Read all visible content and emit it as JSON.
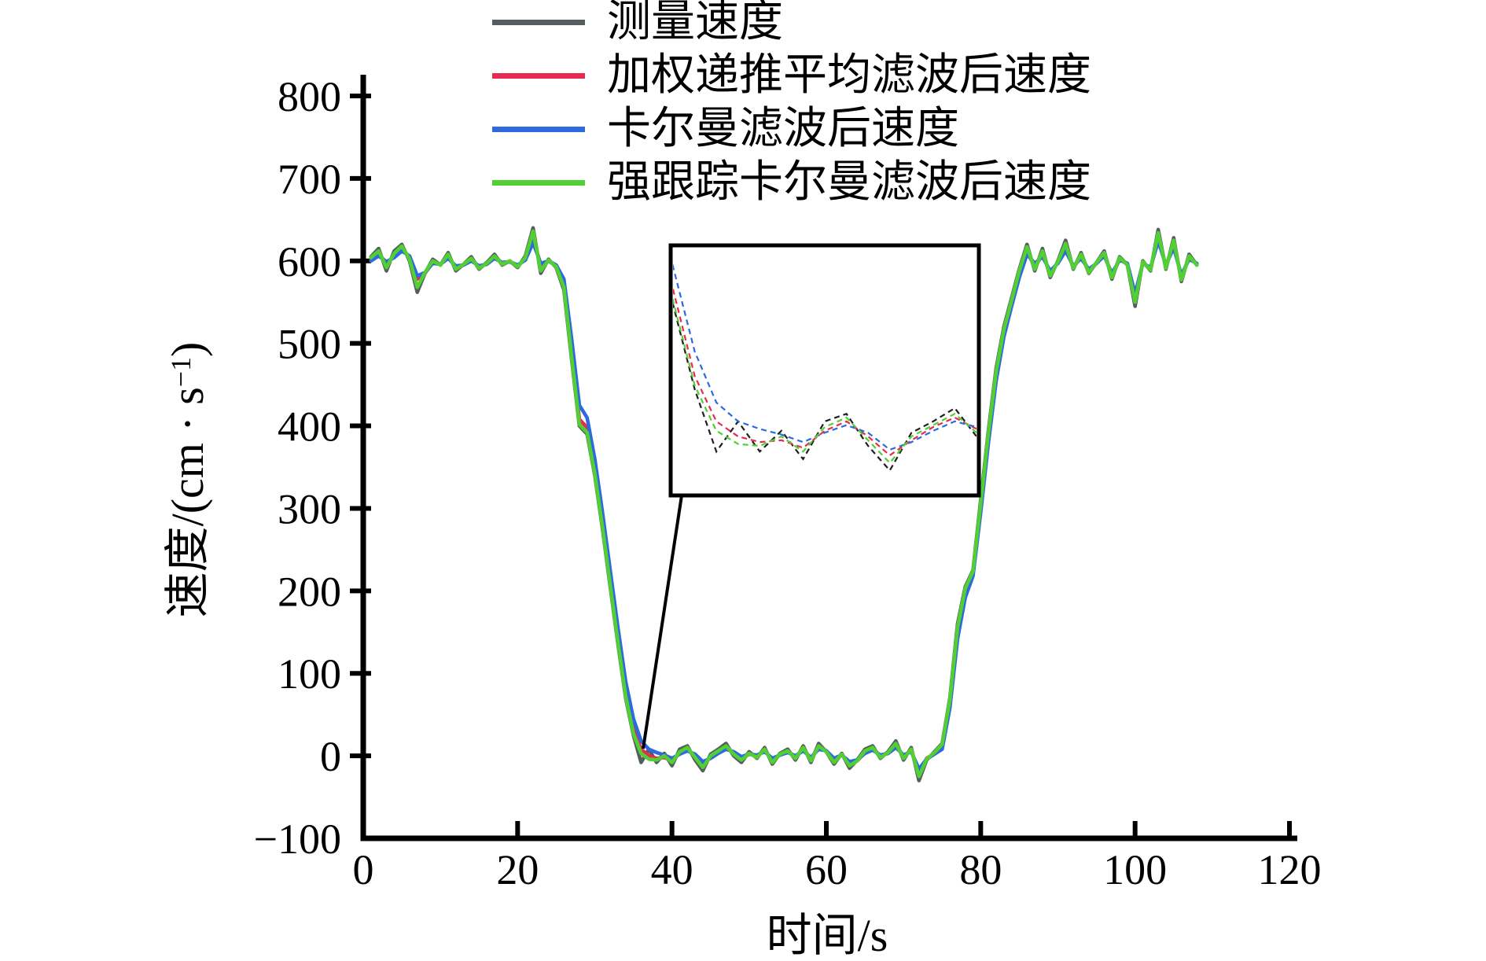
{
  "axes": {
    "xlabel": "时间/s",
    "ylabel_prefix": "速度/(cm · s",
    "ylabel_sup": "−1",
    "ylabel_suffix": ")"
  },
  "chart_data": {
    "type": "line",
    "title": "",
    "xlabel": "时间/s",
    "ylabel": "速度/(cm·s⁻¹)",
    "xlim": [
      0,
      120
    ],
    "ylim": [
      -100,
      800
    ],
    "x_ticks": [
      0,
      20,
      40,
      60,
      80,
      100,
      120
    ],
    "y_ticks": [
      -100,
      0,
      100,
      200,
      300,
      400,
      500,
      600,
      700,
      800
    ],
    "grid": false,
    "legend_position": "top-center",
    "t_start": 1,
    "t_step": 1,
    "series": [
      {
        "name": "测量速度",
        "color": "#555d60",
        "values": [
          605,
          615,
          588,
          612,
          620,
          600,
          562,
          585,
          602,
          595,
          610,
          588,
          596,
          605,
          590,
          598,
          608,
          595,
          600,
          592,
          606,
          640,
          585,
          602,
          592,
          565,
          480,
          400,
          390,
          340,
          275,
          205,
          135,
          70,
          25,
          -8,
          8,
          -8,
          3,
          -12,
          8,
          12,
          -5,
          -18,
          2,
          8,
          15,
          0,
          -8,
          5,
          -3,
          10,
          -10,
          3,
          8,
          -5,
          12,
          -8,
          15,
          5,
          -10,
          3,
          -15,
          -5,
          8,
          12,
          -3,
          5,
          18,
          -5,
          10,
          -30,
          -5,
          5,
          15,
          70,
          160,
          205,
          225,
          310,
          395,
          470,
          520,
          555,
          590,
          620,
          588,
          615,
          580,
          600,
          625,
          590,
          610,
          585,
          598,
          612,
          578,
          605,
          595,
          545,
          600,
          588,
          638,
          590,
          628,
          575,
          608,
          595
        ]
      },
      {
        "name": "加权递推平均滤波后速度",
        "color": "#e82a50",
        "values": [
          602,
          608,
          598,
          605,
          614,
          605,
          578,
          585,
          598,
          596,
          605,
          592,
          595,
          601,
          593,
          596,
          604,
          598,
          599,
          594,
          602,
          628,
          595,
          600,
          594,
          572,
          490,
          408,
          398,
          348,
          282,
          212,
          142,
          78,
          32,
          8,
          0,
          -3,
          -2,
          -6,
          3,
          8,
          0,
          -10,
          -2,
          5,
          10,
          4,
          -3,
          2,
          0,
          6,
          -5,
          1,
          5,
          -1,
          8,
          -3,
          10,
          6,
          -5,
          1,
          -9,
          -6,
          4,
          9,
          0,
          3,
          12,
          0,
          6,
          -20,
          -3,
          3,
          12,
          65,
          152,
          200,
          222,
          302,
          388,
          462,
          514,
          550,
          585,
          612,
          592,
          608,
          585,
          598,
          616,
          592,
          605,
          588,
          597,
          608,
          582,
          602,
          596,
          556,
          598,
          590,
          628,
          593,
          620,
          580,
          604,
          596
        ]
      },
      {
        "name": "卡尔曼滤波后速度",
        "color": "#2d6ae0",
        "values": [
          600,
          606,
          599,
          604,
          612,
          606,
          582,
          586,
          597,
          596,
          603,
          594,
          595,
          600,
          594,
          596,
          603,
          598,
          599,
          595,
          601,
          622,
          597,
          600,
          595,
          578,
          505,
          425,
          410,
          360,
          295,
          225,
          155,
          90,
          45,
          18,
          8,
          4,
          1,
          -3,
          2,
          6,
          2,
          -7,
          -3,
          3,
          8,
          5,
          -1,
          2,
          1,
          5,
          -3,
          1,
          4,
          0,
          6,
          -2,
          8,
          6,
          -3,
          1,
          -7,
          -5,
          3,
          7,
          1,
          3,
          10,
          1,
          5,
          -16,
          -4,
          2,
          8,
          58,
          142,
          192,
          218,
          295,
          380,
          455,
          508,
          545,
          580,
          608,
          597,
          605,
          588,
          597,
          612,
          594,
          603,
          590,
          597,
          606,
          585,
          601,
          597,
          560,
          597,
          592,
          624,
          595,
          616,
          583,
          602,
          597
        ]
      },
      {
        "name": "强跟踪卡尔曼滤波后速度",
        "color": "#52d033",
        "values": [
          604,
          612,
          592,
          609,
          618,
          602,
          568,
          586,
          600,
          595,
          608,
          590,
          596,
          603,
          591,
          597,
          606,
          596,
          600,
          593,
          604,
          636,
          588,
          601,
          593,
          568,
          483,
          402,
          392,
          342,
          277,
          207,
          137,
          72,
          27,
          3,
          -4,
          -5,
          0,
          -8,
          5,
          10,
          -2,
          -14,
          0,
          6,
          12,
          2,
          -5,
          3,
          -2,
          8,
          -8,
          2,
          6,
          -3,
          10,
          -6,
          12,
          5,
          -8,
          2,
          -12,
          -6,
          6,
          10,
          -2,
          4,
          15,
          -3,
          8,
          -25,
          -4,
          4,
          14,
          68,
          156,
          203,
          224,
          306,
          392,
          466,
          517,
          552,
          588,
          617,
          590,
          612,
          582,
          599,
          621,
          591,
          608,
          586,
          598,
          610,
          580,
          604,
          595,
          550,
          599,
          589,
          634,
          591,
          625,
          577,
          606,
          595
        ]
      }
    ],
    "inset": {
      "t_range": [
        34,
        48
      ],
      "v_range": [
        -30,
        100
      ],
      "measured_line_color": "#1f1f1f",
      "line_style": "dashed"
    }
  }
}
